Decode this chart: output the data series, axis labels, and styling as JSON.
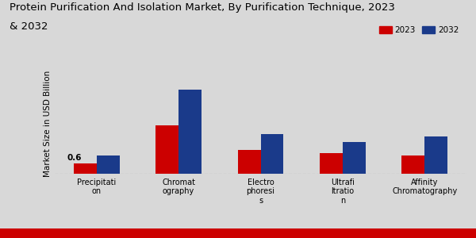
{
  "title_line1": "Protein Purification And Isolation Market, By Purification Technique, 2023",
  "title_line2": "& 2032",
  "ylabel": "Market Size in USD Billion",
  "categories": [
    "Precipitati\non",
    "Chromat\nography",
    "Electro\nphoresi\ns",
    "Ultrafi\nltratio\nn",
    "Affinity\nChromatography"
  ],
  "values_2023": [
    0.6,
    2.8,
    1.4,
    1.2,
    1.05
  ],
  "values_2032": [
    1.05,
    4.9,
    2.3,
    1.85,
    2.15
  ],
  "color_2023": "#cc0000",
  "color_2032": "#1a3a8a",
  "annotation_text": "0.6",
  "background_color": "#d8d8d8",
  "legend_labels": [
    "2023",
    "2032"
  ],
  "bar_width": 0.28,
  "ylim": [
    0,
    5.8
  ],
  "title_fontsize": 9.5,
  "axis_label_fontsize": 7.5,
  "tick_fontsize": 7,
  "bottom_bar_color": "#cc0000"
}
